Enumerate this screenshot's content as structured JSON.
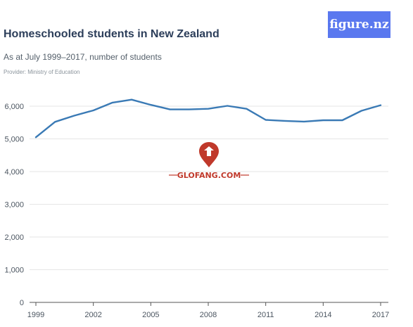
{
  "logo_text": "figure.nz",
  "title": "Homeschooled students in New Zealand",
  "subtitle": "As at July 1999–2017, number of students",
  "provider": "Provider: Ministry of Education",
  "watermark_text": "GLOFANG.COM",
  "colors": {
    "line": "#3a7ab5",
    "logo_bg": "#5a78ef",
    "grid": "#e6e6e6",
    "watermark": "#c0392b"
  },
  "chart_data": {
    "type": "line",
    "title": "Homeschooled students in New Zealand",
    "subtitle": "As at July 1999–2017, number of students",
    "xlabel": "",
    "ylabel": "",
    "x": [
      1999,
      2000,
      2001,
      2002,
      2003,
      2004,
      2005,
      2006,
      2007,
      2008,
      2009,
      2010,
      2011,
      2012,
      2013,
      2014,
      2015,
      2016,
      2017
    ],
    "series": [
      {
        "values": [
          5050,
          5520,
          5710,
          5870,
          6110,
          6200,
          6040,
          5900,
          5900,
          5920,
          6010,
          5920,
          5580,
          5550,
          5530,
          5570,
          5570,
          5860,
          6030
        ]
      }
    ],
    "xticks": [
      "1999",
      "2002",
      "2005",
      "2008",
      "2011",
      "2014",
      "2017"
    ],
    "yticks": [
      "0",
      "1,000",
      "2,000",
      "3,000",
      "4,000",
      "5,000",
      "6,000"
    ],
    "ylim": [
      0,
      6500
    ],
    "grid": true
  }
}
